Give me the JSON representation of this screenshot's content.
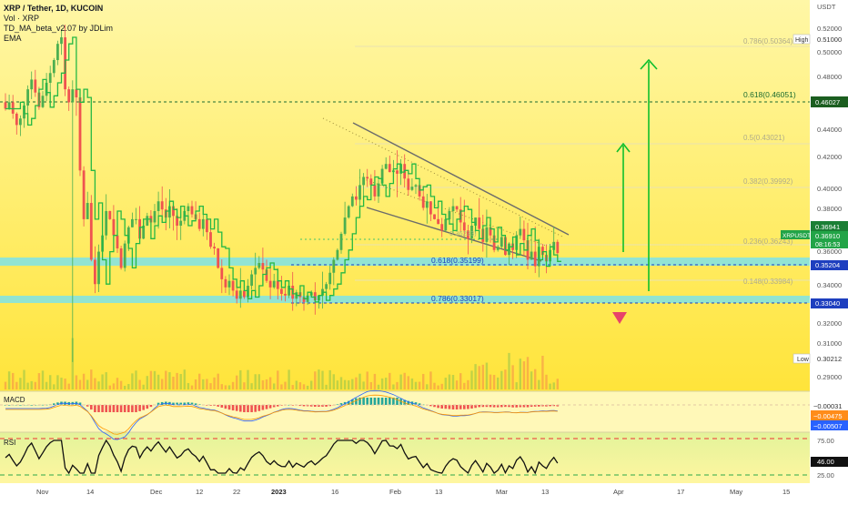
{
  "header": {
    "title": "XRP / Tether, 1D, KUCOIN",
    "indicator_vol": "Vol · XRP",
    "indicator_td": "TD_MA_beta_v2.07 by JDLim",
    "indicator_ema": "EMA"
  },
  "price_axis": {
    "unit": "USDT",
    "ticks": [
      "0.52000",
      "0.51000",
      "0.50000",
      "0.48000",
      "0.46000",
      "0.44000",
      "0.42000",
      "0.40000",
      "0.38000",
      "0.36000",
      "0.34000",
      "0.32000",
      "0.31000",
      "0.30000",
      "0.29000"
    ]
  },
  "tags": {
    "high_label": "High",
    "high_value": "0.51000",
    "low_label": "Low",
    "low_value": "0.30212",
    "symbol": "XRPUSDT",
    "current_price": "0.36910",
    "countdown": "08:16:53",
    "price_a": "0.36941",
    "level_green": "0.46027",
    "level_blue_1": "0.35204",
    "level_blue_2": "0.33040"
  },
  "fib_labels": {
    "f786_top": "0.786(0.50364)",
    "f618_top": "0.618(0.46051)",
    "f5": "0.5(0.43021)",
    "f382": "0.382(0.39992)",
    "f236": "0.236(0.36243)",
    "f148": "0.148(0.33984)",
    "f618_low": "0.618(0.35199)",
    "f786_low": "0.786(0.33017)",
    "small": "0.36233)"
  },
  "macd": {
    "label": "MACD",
    "values": [
      "−0.00031",
      "−0.00475",
      "−0.00507"
    ]
  },
  "rsi": {
    "label": "RSI",
    "ticks": [
      "75.00",
      "46.00",
      "25.00"
    ]
  },
  "time_axis": [
    "Nov",
    "14",
    "Dec",
    "12",
    "22",
    "2023",
    "16",
    "Feb",
    "13",
    "Mar",
    "13",
    "Apr",
    "17",
    "May",
    "15"
  ],
  "colors": {
    "up": "#4caf50",
    "down": "#ef5350",
    "green_line": "#00a651",
    "blue_level": "#1e3fbf",
    "zone": "#7fe3e8"
  },
  "chart_data": {
    "type": "candlestick",
    "symbol": "XRP / Tether",
    "interval": "1D",
    "exchange": "KUCOIN",
    "ylim": [
      0.284,
      0.525
    ],
    "key_levels": {
      "resistance_green": 0.46027,
      "support_blue_1": 0.35204,
      "support_blue_2": 0.3304,
      "session_high": 0.51,
      "session_low": 0.30212,
      "last_price": 0.3691
    },
    "fibonacci": [
      {
        "ratio": 0.786,
        "price": 0.50364
      },
      {
        "ratio": 0.618,
        "price": 0.46051
      },
      {
        "ratio": 0.5,
        "price": 0.43021
      },
      {
        "ratio": 0.382,
        "price": 0.39992
      },
      {
        "ratio": 0.236,
        "price": 0.36243
      },
      {
        "ratio": 0.148,
        "price": 0.33984
      },
      {
        "ratio": 0.618,
        "price": 0.35199
      },
      {
        "ratio": 0.786,
        "price": 0.33017
      }
    ],
    "closes": [
      0.458,
      0.462,
      0.455,
      0.448,
      0.452,
      0.46,
      0.47,
      0.476,
      0.468,
      0.459,
      0.466,
      0.474,
      0.48,
      0.488,
      0.498,
      0.502,
      0.47,
      0.462,
      0.47,
      0.465,
      0.42,
      0.39,
      0.4,
      0.365,
      0.35,
      0.37,
      0.38,
      0.395,
      0.39,
      0.38,
      0.372,
      0.36,
      0.375,
      0.385,
      0.39,
      0.39,
      0.378,
      0.386,
      0.392,
      0.388,
      0.395,
      0.401,
      0.396,
      0.391,
      0.398,
      0.392,
      0.386,
      0.389,
      0.395,
      0.398,
      0.393,
      0.39,
      0.384,
      0.39,
      0.382,
      0.373,
      0.372,
      0.36,
      0.353,
      0.348,
      0.352,
      0.346,
      0.341,
      0.346,
      0.342,
      0.349,
      0.356,
      0.36,
      0.363,
      0.359,
      0.352,
      0.348,
      0.352,
      0.347,
      0.344,
      0.343,
      0.349,
      0.341,
      0.345,
      0.342,
      0.339,
      0.343,
      0.345,
      0.34,
      0.343,
      0.347,
      0.35,
      0.357,
      0.365,
      0.371,
      0.381,
      0.391,
      0.398,
      0.404,
      0.402,
      0.411,
      0.416,
      0.415,
      0.411,
      0.404,
      0.412,
      0.421,
      0.424,
      0.419,
      0.42,
      0.418,
      0.424,
      0.415,
      0.408,
      0.41,
      0.411,
      0.404,
      0.397,
      0.401,
      0.393,
      0.39,
      0.387,
      0.383,
      0.39,
      0.395,
      0.398,
      0.396,
      0.388,
      0.383,
      0.378,
      0.386,
      0.391,
      0.384,
      0.376,
      0.385,
      0.38,
      0.371,
      0.373,
      0.379,
      0.368,
      0.375,
      0.371,
      0.38,
      0.384,
      0.377,
      0.365,
      0.37,
      0.361,
      0.373,
      0.368,
      0.364,
      0.371,
      0.376,
      0.3691
    ]
  }
}
